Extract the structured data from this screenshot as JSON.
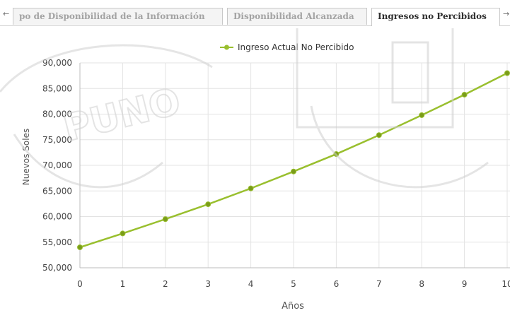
{
  "tabs": [
    {
      "label": "po de Disponibilidad de la Información",
      "active": false
    },
    {
      "label": "Disponibilidad Alcanzada",
      "active": false
    },
    {
      "label": "Ingresos no Percibidos",
      "active": true
    }
  ],
  "nav": {
    "left_arrow": "←",
    "right_arrow": "→"
  },
  "watermark": {
    "text": "PUNO"
  },
  "chart_data": {
    "type": "line",
    "xlabel": "Años",
    "ylabel": "Nuevos Soles",
    "x": [
      0,
      1,
      2,
      3,
      4,
      5,
      6,
      7,
      8,
      9,
      10
    ],
    "xticks": [
      "0",
      "1",
      "2",
      "3",
      "4",
      "5",
      "6",
      "7",
      "8",
      "9",
      "10"
    ],
    "yticks": [
      "50,000",
      "55,000",
      "60,000",
      "65,000",
      "70,000",
      "75,000",
      "80,000",
      "85,000",
      "90,000"
    ],
    "ylim": [
      50000,
      90000
    ],
    "xlim": [
      0,
      10
    ],
    "grid": true,
    "legend_position": "top",
    "series": [
      {
        "name": "Ingreso Actual No Percibido",
        "color": "#99bf2e",
        "marker_color": "#7a9c1a",
        "values": [
          54000,
          56700,
          59500,
          62400,
          65500,
          68800,
          72200,
          75900,
          79800,
          83800,
          88000
        ]
      }
    ]
  }
}
